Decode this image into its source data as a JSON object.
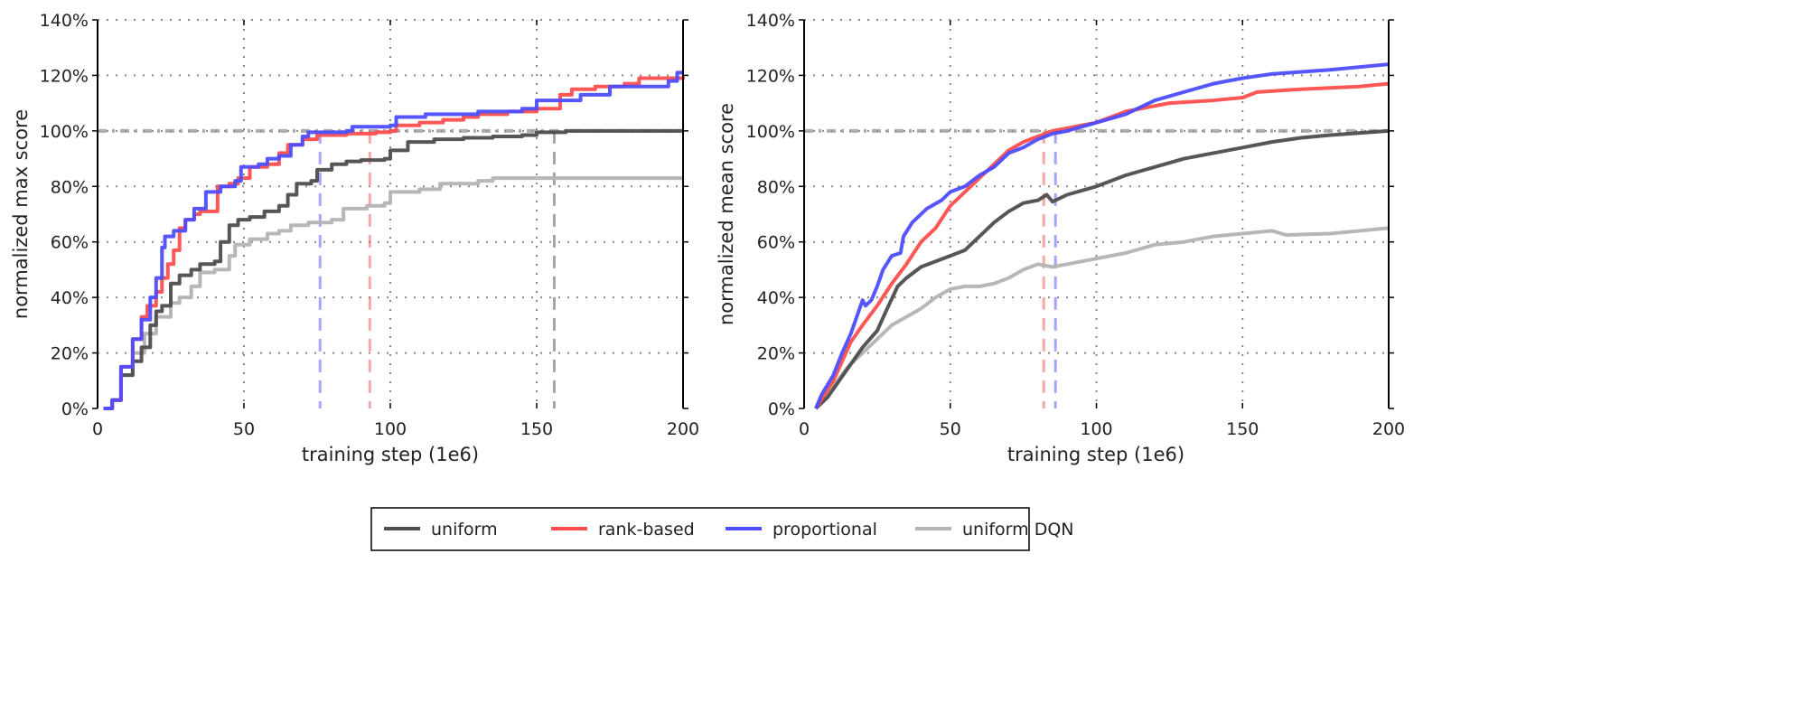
{
  "colors": {
    "uniform": "#4d4d4d",
    "rank-based": "#ff4d4d",
    "proportional": "#4d4dff",
    "uniform DQN": "#b3b3b3",
    "reference": "#999999"
  },
  "legend": {
    "placement": "bottom-center",
    "entries": [
      "uniform",
      "rank-based",
      "proportional",
      "uniform DQN"
    ]
  },
  "chart_data": [
    {
      "type": "line",
      "interpolation": "step",
      "xlabel": "training step (1e6)",
      "ylabel": "normalized max score",
      "xlim": [
        0,
        200
      ],
      "ylim": [
        0,
        140
      ],
      "xticks": [
        "0",
        "50",
        "100",
        "150",
        "200"
      ],
      "yticks": [
        "0%",
        "20%",
        "40%",
        "60%",
        "80%",
        "100%",
        "120%",
        "140%"
      ],
      "grid": true,
      "reference_line": 100,
      "vlines": [
        {
          "series": "proportional",
          "x": 76
        },
        {
          "series": "rank-based",
          "x": 93
        },
        {
          "series": "uniform",
          "x": 156
        }
      ],
      "series": [
        {
          "name": "uniform",
          "x": [
            2,
            5,
            8,
            12,
            15,
            18,
            20,
            22,
            25,
            28,
            32,
            35,
            40,
            42,
            45,
            48,
            52,
            57,
            62,
            65,
            68,
            73,
            75,
            80,
            85,
            90,
            98,
            100,
            106,
            115,
            125,
            135,
            145,
            150,
            160,
            200
          ],
          "y": [
            0,
            3,
            12,
            17,
            22,
            30,
            35,
            37,
            45,
            48,
            50,
            52,
            53,
            60,
            66,
            68,
            69,
            71,
            73,
            77,
            81,
            82,
            86,
            88,
            89,
            89.5,
            90,
            93,
            96,
            97,
            97.5,
            98,
            98.5,
            99.5,
            100,
            100
          ]
        },
        {
          "name": "rank-based",
          "x": [
            2,
            5,
            8,
            12,
            15,
            17,
            20,
            22,
            24,
            26,
            28,
            30,
            33,
            35,
            40,
            41,
            45,
            48,
            52,
            58,
            62,
            65,
            70,
            75,
            85,
            95,
            100,
            102,
            110,
            118,
            125,
            130,
            140,
            150,
            155,
            158,
            162,
            170,
            180,
            185,
            200
          ],
          "y": [
            0,
            3,
            15,
            25,
            33,
            37,
            42,
            47,
            52,
            57,
            65,
            68,
            70,
            71,
            71,
            80,
            81,
            83,
            87,
            88,
            92,
            95,
            97,
            98.5,
            99,
            99.5,
            100,
            102,
            103,
            104,
            105,
            106,
            107,
            108,
            108,
            113,
            115,
            116,
            117,
            119,
            119.5
          ]
        },
        {
          "name": "proportional",
          "x": [
            2,
            5,
            8,
            12,
            15,
            18,
            20,
            22,
            23,
            26,
            30,
            33,
            37,
            42,
            47,
            49,
            55,
            58,
            62,
            66,
            70,
            72,
            85,
            87,
            100,
            102,
            112,
            130,
            145,
            150,
            165,
            175,
            195,
            198,
            200
          ],
          "y": [
            0,
            3,
            15,
            25,
            32,
            40,
            47,
            58,
            62,
            64,
            68,
            72,
            78,
            80,
            82,
            87,
            88,
            90,
            91,
            95,
            98,
            99.5,
            100,
            101.5,
            102,
            105,
            106,
            107,
            108,
            111,
            113,
            116,
            118,
            121,
            121
          ]
        },
        {
          "name": "uniform DQN",
          "x": [
            2,
            5,
            8,
            12,
            16,
            20,
            25,
            28,
            32,
            35,
            40,
            45,
            47,
            52,
            58,
            62,
            66,
            72,
            80,
            84,
            92,
            98,
            100,
            110,
            117,
            130,
            135,
            155,
            200
          ],
          "y": [
            0,
            3,
            12,
            20,
            27,
            33,
            38,
            40,
            44,
            49,
            50,
            55,
            59,
            61,
            63,
            64,
            66,
            67,
            68,
            72,
            73,
            74,
            78,
            79,
            81,
            82,
            83,
            83,
            83
          ]
        }
      ]
    },
    {
      "type": "line",
      "xlabel": "training step (1e6)",
      "ylabel": "normalized mean score",
      "xlim": [
        0,
        200
      ],
      "ylim": [
        0,
        140
      ],
      "xticks": [
        "0",
        "50",
        "100",
        "150",
        "200"
      ],
      "yticks": [
        "0%",
        "20%",
        "40%",
        "60%",
        "80%",
        "100%",
        "120%",
        "140%"
      ],
      "grid": true,
      "reference_line": 100,
      "vlines": [
        {
          "series": "rank-based",
          "x": 82
        },
        {
          "series": "proportional",
          "x": 86
        }
      ],
      "series": [
        {
          "name": "uniform",
          "x": [
            4,
            8,
            12,
            16,
            20,
            25,
            28,
            32,
            35,
            40,
            45,
            50,
            55,
            60,
            65,
            70,
            75,
            80,
            83,
            85,
            90,
            100,
            110,
            120,
            130,
            140,
            150,
            160,
            170,
            180,
            200
          ],
          "y": [
            0,
            4,
            10,
            16,
            22,
            28,
            35,
            44,
            47,
            51,
            53,
            55,
            57,
            62,
            67,
            71,
            74,
            75,
            77,
            74.5,
            77,
            80,
            84,
            87,
            90,
            92,
            94,
            96,
            97.5,
            98.5,
            100
          ]
        },
        {
          "name": "rank-based",
          "x": [
            4,
            7,
            10,
            13,
            16,
            20,
            25,
            30,
            35,
            40,
            45,
            50,
            55,
            60,
            65,
            70,
            75,
            80,
            85,
            90,
            100,
            110,
            120,
            125,
            140,
            150,
            155,
            170,
            190,
            200
          ],
          "y": [
            0,
            5,
            10,
            17,
            24,
            30,
            37,
            45,
            52,
            60,
            65,
            73,
            78,
            83,
            88,
            93,
            96,
            98,
            100,
            101,
            103,
            107,
            109,
            110,
            111,
            112,
            114,
            115,
            116,
            117
          ]
        },
        {
          "name": "proportional",
          "x": [
            4,
            6,
            10,
            13,
            16,
            18,
            20,
            21,
            23,
            25,
            27,
            30,
            33,
            34,
            37,
            42,
            47,
            50,
            55,
            60,
            65,
            70,
            75,
            80,
            85,
            90,
            100,
            110,
            120,
            130,
            140,
            150,
            160,
            180,
            200
          ],
          "y": [
            0,
            5,
            12,
            20,
            27,
            33,
            39,
            37,
            39,
            44,
            50,
            55,
            56,
            62,
            67,
            72,
            75,
            78,
            80,
            84,
            87,
            92,
            94,
            97,
            99,
            100,
            103,
            106,
            111,
            114,
            117,
            119,
            120.5,
            122,
            124
          ]
        },
        {
          "name": "uniform DQN",
          "x": [
            4,
            10,
            15,
            20,
            25,
            30,
            35,
            40,
            45,
            50,
            55,
            60,
            65,
            70,
            75,
            80,
            85,
            90,
            100,
            110,
            120,
            130,
            140,
            150,
            160,
            165,
            180,
            200
          ],
          "y": [
            0,
            8,
            15,
            20,
            25,
            30,
            33,
            36,
            40,
            43,
            44,
            44,
            45,
            47,
            50,
            52,
            51,
            52,
            54,
            56,
            59,
            60,
            62,
            63,
            64,
            62.5,
            63,
            65
          ]
        }
      ]
    }
  ]
}
